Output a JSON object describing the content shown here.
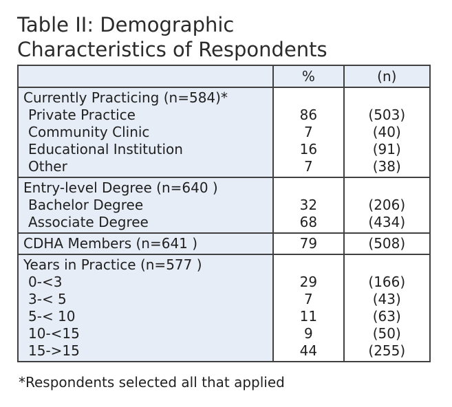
{
  "title": {
    "line1": "Table II: Demographic",
    "line2": "Characteristics of Respondents"
  },
  "table": {
    "headers": {
      "percent": "%",
      "n": "(n)"
    },
    "sections": [
      {
        "title": "Currently Practicing (n=584)*",
        "rows": [
          {
            "label": "Private Practice",
            "pct": "86",
            "n": "(503)"
          },
          {
            "label": "Community Clinic",
            "pct": "7",
            "n": "(40)"
          },
          {
            "label": "Educational Institution",
            "pct": "16",
            "n": "(91)"
          },
          {
            "label": "Other",
            "pct": "7",
            "n": "(38)"
          }
        ]
      },
      {
        "title": "Entry-level Degree (n=640 )",
        "rows": [
          {
            "label": "Bachelor Degree",
            "pct": "32",
            "n": "(206)"
          },
          {
            "label": "Associate Degree",
            "pct": "68",
            "n": "(434)"
          }
        ]
      },
      {
        "title": "CDHA Members (n=641 )",
        "pct": "79",
        "n": "(508)",
        "rows": []
      },
      {
        "title": "Years in Practice (n=577 )",
        "rows": [
          {
            "label": "0-<3",
            "pct": "29",
            "n": "(166)"
          },
          {
            "label": "3-< 5",
            "pct": "7",
            "n": "(43)"
          },
          {
            "label": "5-< 10",
            "pct": "11",
            "n": "(63)"
          },
          {
            "label": "10-<15",
            "pct": "9",
            "n": "(50)"
          },
          {
            "label": "15->15",
            "pct": "44",
            "n": "(255)"
          }
        ]
      }
    ]
  },
  "footnote": "*Respondents selected all that applied",
  "colors": {
    "header_bg": "#e6edf7",
    "label_bg": "#e6edf7",
    "border": "#404040",
    "text": "#1f1f1f",
    "background": "#ffffff"
  }
}
